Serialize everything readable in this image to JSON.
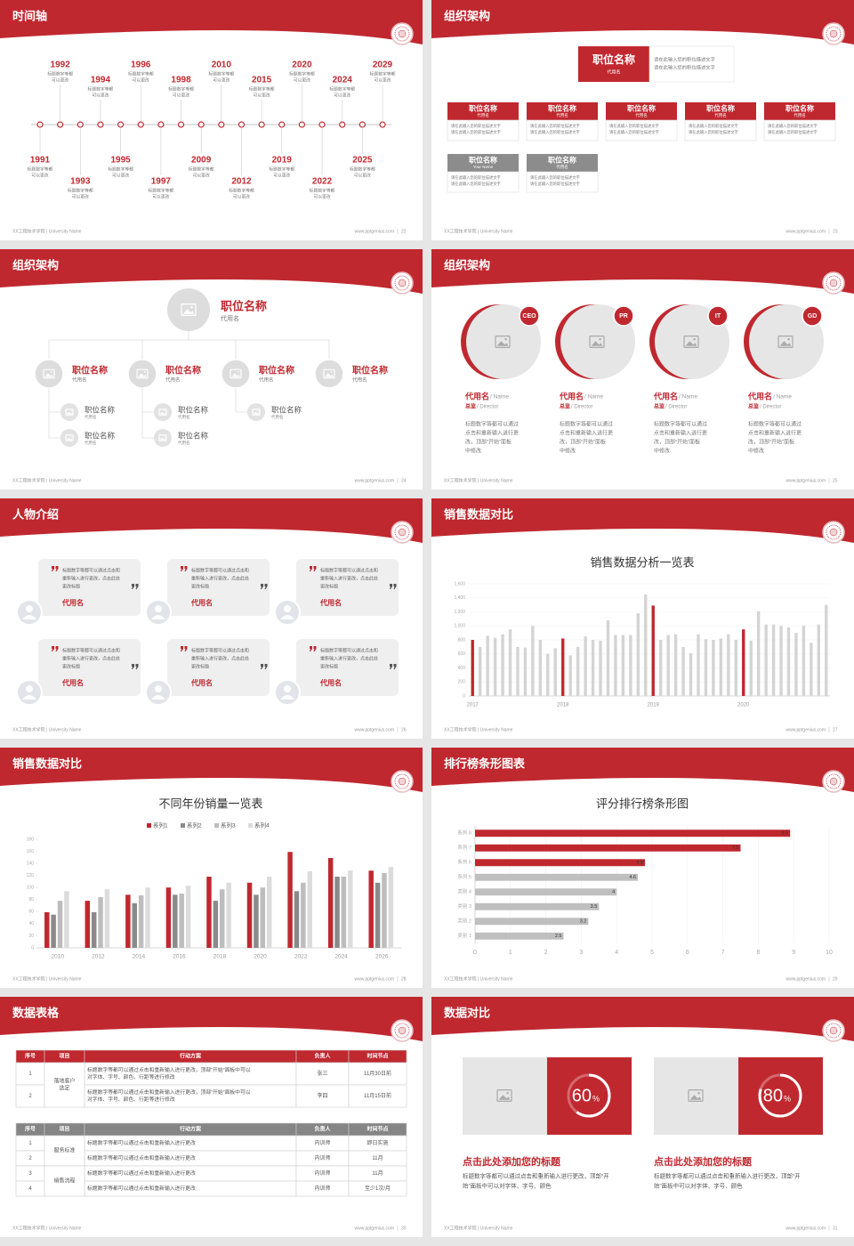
{
  "footer": {
    "school": "XX工程技术学院 | University Name",
    "url": "www.pptgenius.com"
  },
  "slides": [
    {
      "type": "timeline",
      "title": "时间轴",
      "page": 22,
      "events": [
        {
          "year": "1991",
          "lines": [
            "标题数字等都",
            "可以更改"
          ]
        },
        {
          "year": "1992",
          "lines": [
            "标题数字等都",
            "可以更改"
          ]
        },
        {
          "year": "1993",
          "lines": [
            "标题数字等都",
            "可以更改"
          ]
        },
        {
          "year": "1994",
          "lines": [
            "标题数字等都",
            "可以更改"
          ]
        },
        {
          "year": "1995",
          "lines": [
            "标题数字等都",
            "可以更改"
          ]
        },
        {
          "year": "1996",
          "lines": [
            "标题数字等都",
            "可以更改"
          ]
        },
        {
          "year": "1997",
          "lines": [
            "标题数字等都",
            "可以更改"
          ]
        },
        {
          "year": "1998",
          "lines": [
            "标题数字等都",
            "可以更改"
          ]
        },
        {
          "year": "2009",
          "lines": [
            "标题数字等都",
            "可以更改"
          ]
        },
        {
          "year": "2010",
          "lines": [
            "标题数字等都",
            "可以更改"
          ]
        },
        {
          "year": "2012",
          "lines": [
            "标题数字等都",
            "可以更改"
          ]
        },
        {
          "year": "2015",
          "lines": [
            "标题数字等都",
            "可以更改"
          ]
        },
        {
          "year": "2019",
          "lines": [
            "标题数字等都",
            "可以更改"
          ]
        },
        {
          "year": "2020",
          "lines": [
            "标题数字等都",
            "可以更改"
          ]
        },
        {
          "year": "2022",
          "lines": [
            "标题数字等都",
            "可以更改"
          ]
        },
        {
          "year": "2024",
          "lines": [
            "标题数字等都",
            "可以更改"
          ]
        },
        {
          "year": "2025",
          "lines": [
            "标题数字等都",
            "可以更改"
          ]
        },
        {
          "year": "2029",
          "lines": [
            "标题数字等都",
            "可以更改"
          ]
        }
      ]
    },
    {
      "type": "org-boxes",
      "title": "组织架构",
      "page": 23,
      "top": {
        "title": "职位名称",
        "sub": "代用名",
        "lines": [
          "请在此输入您的职位描述文字",
          "请在此输入您的职位描述文字"
        ]
      },
      "boxes": [
        {
          "title": "职位名称",
          "sub": "代用名",
          "color": "#c0282f",
          "lines": [
            "请在此输入您的职位描述文字",
            "请在此输入您的职位描述文字"
          ]
        },
        {
          "title": "职位名称",
          "sub": "代用名",
          "color": "#c0282f",
          "lines": [
            "请在此输入您的职位描述文字",
            "请在此输入您的职位描述文字"
          ]
        },
        {
          "title": "职位名称",
          "sub": "代用名",
          "color": "#c0282f",
          "lines": [
            "请在此输入您的职位描述文字",
            "请在此输入您的职位描述文字"
          ]
        },
        {
          "title": "职位名称",
          "sub": "代用名",
          "color": "#c0282f",
          "lines": [
            "请在此输入您的职位描述文字",
            "请在此输入您的职位描述文字"
          ]
        },
        {
          "title": "职位名称",
          "sub": "代用名",
          "color": "#c0282f",
          "lines": [
            "请在此输入您的职位描述文字",
            "请在此输入您的职位描述文字"
          ]
        },
        {
          "title": "职位名称",
          "sub": "Your Name",
          "color": "#8c8c8c",
          "lines": [
            "请在此输入您的职位描述文字",
            "请在此输入您的职位描述文字"
          ]
        },
        {
          "title": "职位名称",
          "sub": "代用名",
          "color": "#8c8c8c",
          "lines": [
            "请在此输入您的职位描述文字",
            "请在此输入您的职位描述文字"
          ]
        }
      ]
    },
    {
      "type": "org-tree",
      "title": "组织架构",
      "page": 24,
      "top": {
        "title": "职位名称",
        "sub": "代用名"
      },
      "items": [
        {
          "title": "职位名称",
          "sub": "代用名",
          "children": [
            {
              "title": "职位名称",
              "sub": "代用名"
            },
            {
              "title": "职位名称",
              "sub": "代用名"
            }
          ]
        },
        {
          "title": "职位名称",
          "sub": "代用名",
          "children": [
            {
              "title": "职位名称",
              "sub": "代用名"
            },
            {
              "title": "职位名称",
              "sub": "代用名"
            }
          ]
        },
        {
          "title": "职位名称",
          "sub": "代用名",
          "children": [
            {
              "title": "职位名称",
              "sub": "代用名"
            }
          ]
        },
        {
          "title": "职位名称",
          "sub": "代用名",
          "children": []
        }
      ]
    },
    {
      "type": "team",
      "title": "组织架构",
      "page": 25,
      "members": [
        {
          "badge": "CEO",
          "name": "代用名",
          "name_en": "/ Name",
          "role": "总监",
          "role_en": "/ Director",
          "lines": [
            "标题数字等都可以通过",
            "点击和重新输入进行更",
            "改，顶部“开始”面板",
            "中修改"
          ]
        },
        {
          "badge": "PR",
          "name": "代用名",
          "name_en": "/ Name",
          "role": "总监",
          "role_en": "/ Director",
          "lines": [
            "标题数字等都可以通过",
            "点击和重新输入进行更",
            "改，顶部“开始”面板",
            "中修改"
          ]
        },
        {
          "badge": "IT",
          "name": "代用名",
          "name_en": "/ Name",
          "role": "总监",
          "role_en": "/ Director",
          "lines": [
            "标题数字等都可以通过",
            "点击和重新输入进行更",
            "改，顶部“开始”面板",
            "中修改"
          ]
        },
        {
          "badge": "GD",
          "name": "代用名",
          "name_en": "/ Name",
          "role": "总监",
          "role_en": "/ Director",
          "lines": [
            "标题数字等都可以通过",
            "点击和重新输入进行更",
            "改，顶部“开始”面板",
            "中修改"
          ]
        }
      ]
    },
    {
      "type": "quotes",
      "title": "人物介绍",
      "page": 26,
      "cards": [
        {
          "lines": [
            "标题数字等都可以通过点击和",
            "重新输入进行更改，点击此处",
            "更改标题"
          ],
          "name": "代用名"
        },
        {
          "lines": [
            "标题数字等都可以通过点击和",
            "重新输入进行更改，点击此处",
            "更改标题"
          ],
          "name": "代用名"
        },
        {
          "lines": [
            "标题数字等都可以通过点击和",
            "重新输入进行更改，点击此处",
            "更改标题"
          ],
          "name": "代用名"
        },
        {
          "lines": [
            "标题数字等都可以通过点击和",
            "重新输入进行更改，点击此处",
            "更改标题"
          ],
          "name": "代用名"
        },
        {
          "lines": [
            "标题数字等都可以通过点击和",
            "重新输入进行更改，点击此处",
            "更改标题"
          ],
          "name": "代用名"
        },
        {
          "lines": [
            "标题数字等都可以通过点击和",
            "重新输入进行更改，点击此处",
            "更改标题"
          ],
          "name": "代用名"
        }
      ]
    },
    {
      "type": "chart",
      "title": "销售数据对比",
      "page": 27,
      "chart_data": {
        "type": "bar",
        "title": "销售数据分析一览表",
        "categories": [
          "2017",
          null,
          null,
          null,
          null,
          null,
          null,
          null,
          null,
          null,
          null,
          null,
          "2018",
          null,
          null,
          null,
          null,
          null,
          null,
          null,
          null,
          null,
          null,
          null,
          "2019",
          null,
          null,
          null,
          null,
          null,
          null,
          null,
          null,
          null,
          null,
          null,
          "2020",
          null,
          null,
          null,
          null,
          null,
          null,
          null,
          null,
          null,
          null,
          null
        ],
        "values": [
          800,
          700,
          860,
          830,
          880,
          950,
          700,
          690,
          1000,
          800,
          600,
          680,
          820,
          580,
          700,
          850,
          800,
          790,
          1080,
          870,
          870,
          870,
          1180,
          1450,
          1290,
          800,
          870,
          880,
          700,
          610,
          880,
          810,
          800,
          820,
          880,
          800,
          950,
          790,
          1210,
          1020,
          1020,
          1000,
          980,
          900,
          1000,
          760,
          1020,
          1300
        ],
        "colors": [
          "#c0282f",
          "#d4d4d4",
          "#d4d4d4",
          "#d4d4d4",
          "#d4d4d4",
          "#d4d4d4",
          "#d4d4d4",
          "#d4d4d4",
          "#d4d4d4",
          "#d4d4d4",
          "#d4d4d4",
          "#d4d4d4",
          "#c0282f",
          "#d4d4d4",
          "#d4d4d4",
          "#d4d4d4",
          "#d4d4d4",
          "#d4d4d4",
          "#d4d4d4",
          "#d4d4d4",
          "#d4d4d4",
          "#d4d4d4",
          "#d4d4d4",
          "#d4d4d4",
          "#c0282f",
          "#d4d4d4",
          "#d4d4d4",
          "#d4d4d4",
          "#d4d4d4",
          "#d4d4d4",
          "#d4d4d4",
          "#d4d4d4",
          "#d4d4d4",
          "#d4d4d4",
          "#d4d4d4",
          "#d4d4d4",
          "#c0282f",
          "#d4d4d4",
          "#d4d4d4",
          "#d4d4d4",
          "#d4d4d4",
          "#d4d4d4",
          "#d4d4d4",
          "#d4d4d4",
          "#d4d4d4",
          "#d4d4d4",
          "#d4d4d4",
          "#d4d4d4"
        ],
        "ylim": [
          0,
          1600
        ],
        "yticks": [
          0,
          200,
          400,
          600,
          800,
          {
            "value": 1000,
            "label": "1,000"
          },
          {
            "value": 1200,
            "label": "1,200"
          },
          {
            "value": 1400,
            "label": "1,400"
          },
          {
            "value": 1600,
            "label": "1,600"
          }
        ],
        "grid": true
      }
    },
    {
      "type": "chart",
      "title": "销售数据对比",
      "page": 28,
      "chart_data": {
        "type": "grouped-bar",
        "title": "不同年份销量一览表",
        "categories": [
          "2010",
          "2012",
          "2014",
          "2016",
          "2018",
          "2020",
          "2022",
          "2024",
          "2026"
        ],
        "series": [
          {
            "name": "系列1",
            "color": "#c0282f",
            "values": [
              59,
              78,
              88,
              100,
              118,
              108,
              159,
              149,
              128
            ]
          },
          {
            "name": "系列2",
            "color": "#8a8a8a",
            "values": [
              55,
              59,
              74,
              88,
              78,
              88,
              94,
              118,
              108
            ]
          },
          {
            "name": "系列3",
            "color": "#bdbdbd",
            "values": [
              78,
              84,
              87,
              90,
              97,
              100,
              108,
              118,
              124
            ]
          },
          {
            "name": "系列4",
            "color": "#dcdcdc",
            "values": [
              94,
              97,
              100,
              103,
              108,
              118,
              127,
              128,
              134
            ]
          }
        ],
        "ylim": [
          0,
          180
        ],
        "yticks": [
          0,
          20,
          40,
          60,
          80,
          100,
          120,
          140,
          160,
          180
        ],
        "grid": false
      }
    },
    {
      "type": "chart",
      "title": "排行榜条形图表",
      "page": 29,
      "chart_data": {
        "type": "hbar",
        "title": "评分排行榜条形图",
        "categories": [
          "系列 8",
          "系列 7",
          "系列 6",
          "系列 5",
          "类别 4",
          "类别 3",
          "类别 2",
          "类别 1"
        ],
        "values": [
          8.9,
          7.5,
          4.8,
          4.6,
          4,
          3.5,
          3.2,
          2.5
        ],
        "colors": [
          "#c0282f",
          "#c0282f",
          "#c0282f",
          "#bfbfbf",
          "#bfbfbf",
          "#bfbfbf",
          "#bfbfbf",
          "#bfbfbf"
        ],
        "xlim": [
          0,
          10
        ],
        "xticks": [
          0,
          1,
          2,
          3,
          4,
          5,
          6,
          7,
          8,
          9,
          10
        ],
        "grid": true
      }
    },
    {
      "type": "tables",
      "title": "数据表格",
      "page": 30,
      "tables": [
        {
          "header": [
            "序号",
            "项目",
            "行动方案",
            "负责人",
            "时间节点"
          ],
          "header_color": "#c0282f",
          "row_height": 25,
          "groups": [
            {
              "project": [
                "落地客户",
                "选定"
              ],
              "rows": [
                {
                  "no": "1",
                  "action": [
                    "标题数字等都可以通过点击和重新输入进行更改，顶部“开始”面板中可以",
                    "对字体、字号、颜色、行距等进行修改"
                  ],
                  "owner": "张三",
                  "time": "11月30日前"
                },
                {
                  "no": "2",
                  "action": [
                    "标题数字等都可以通过点击和重新输入进行更改，顶部“开始”面板中可以",
                    "对字体、字号、颜色、行距等进行修改"
                  ],
                  "owner": "李四",
                  "time": "11月15日前"
                }
              ]
            }
          ]
        },
        {
          "header": [
            "序号",
            "项目",
            "行动方案",
            "负责人",
            "时间节点"
          ],
          "header_color": "#858585",
          "row_height": 17,
          "groups": [
            {
              "project": [
                "服务标准"
              ],
              "rows": [
                {
                  "no": "1",
                  "action": [
                    "标题数字等都可以通过点击和重新输入进行更改"
                  ],
                  "owner": "内训师",
                  "time": "即日实施"
                },
                {
                  "no": "2",
                  "action": [
                    "标题数字等都可以通过点击和重新输入进行更改"
                  ],
                  "owner": "内训师",
                  "time": "11月"
                }
              ]
            },
            {
              "project": [
                "销售流程"
              ],
              "rows": [
                {
                  "no": "3",
                  "action": [
                    "标题数字等都可以通过点击和重新输入进行更改"
                  ],
                  "owner": "内训师",
                  "time": "11月"
                },
                {
                  "no": "4",
                  "action": [
                    "标题数字等都可以通过点击和重新输入进行更改"
                  ],
                  "owner": "内训师",
                  "time": "至少1次/月"
                }
              ]
            }
          ]
        }
      ]
    },
    {
      "type": "percent-cards",
      "title": "数据对比",
      "page": 31,
      "cards": [
        {
          "value": 60,
          "unit": "%",
          "title": "点击此处添加您的标题",
          "lines": [
            "标题数字等都可以通过点击和重新输入进行更改，顶部“开",
            "始”面板中可以对字体、字号、颜色"
          ]
        },
        {
          "value": 80,
          "unit": "%",
          "title": "点击此处添加您的标题",
          "lines": [
            "标题数字等都可以通过点击和重新输入进行更改，顶部“开",
            "始”面板中可以对字体、字号、颜色"
          ]
        }
      ]
    }
  ]
}
